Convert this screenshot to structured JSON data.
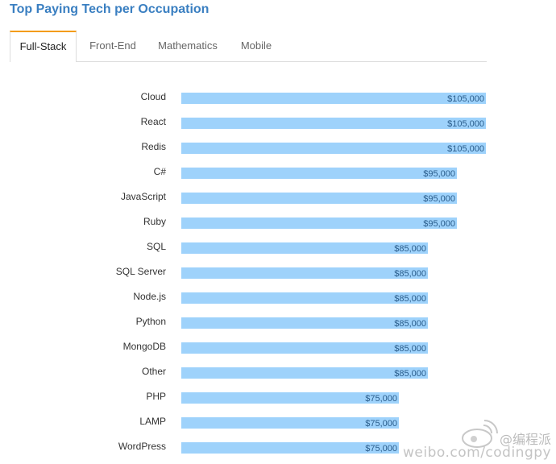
{
  "page": {
    "title": "Top Paying Tech per Occupation"
  },
  "tabs": [
    {
      "label": "Full-Stack",
      "active": true
    },
    {
      "label": "Front-End",
      "active": false
    },
    {
      "label": "Mathematics",
      "active": false
    },
    {
      "label": "Mobile",
      "active": false
    }
  ],
  "colors": {
    "title": "#3a7fc1",
    "bar": "#9ed2fb",
    "value_text": "#2a5d8c",
    "tab_accent": "#f39c12"
  },
  "chart_data": {
    "type": "bar",
    "orientation": "horizontal",
    "categories": [
      "Cloud",
      "React",
      "Redis",
      "C#",
      "JavaScript",
      "Ruby",
      "SQL",
      "SQL Server",
      "Node.js",
      "Python",
      "MongoDB",
      "Other",
      "PHP",
      "LAMP",
      "WordPress"
    ],
    "values": [
      105000,
      105000,
      105000,
      95000,
      95000,
      95000,
      85000,
      85000,
      85000,
      85000,
      85000,
      85000,
      75000,
      75000,
      75000
    ],
    "value_labels": [
      "$105,000",
      "$105,000",
      "$105,000",
      "$95,000",
      "$95,000",
      "$95,000",
      "$85,000",
      "$85,000",
      "$85,000",
      "$85,000",
      "$85,000",
      "$85,000",
      "$75,000",
      "$75,000",
      "$75,000"
    ],
    "grid": false,
    "legend": "none"
  },
  "watermark": {
    "handle": "@编程派",
    "url": "weibo.com/codingpy"
  }
}
